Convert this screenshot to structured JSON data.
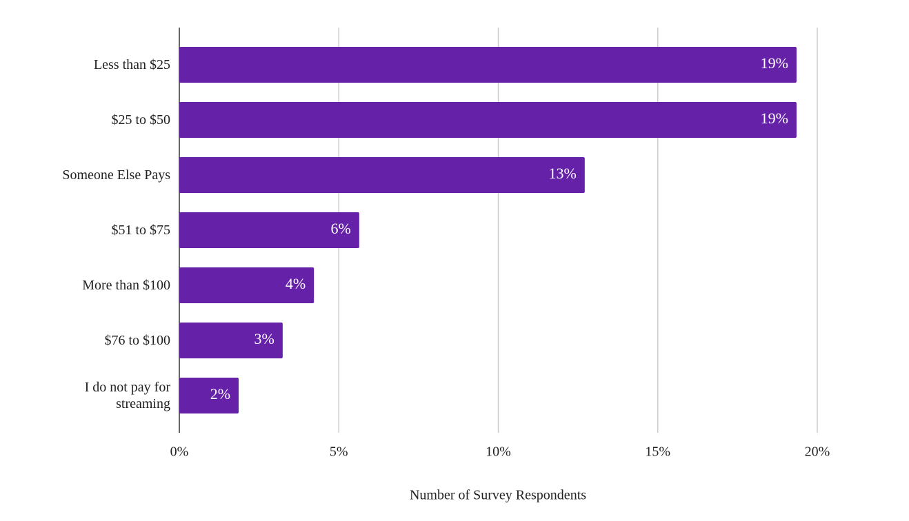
{
  "chart_data": {
    "type": "hbar",
    "categories": [
      "Less than $25",
      "$25 to $50",
      "Someone Else Pays",
      "$51 to $75",
      "More than $100",
      "$76 to $100",
      "I do not pay for streaming"
    ],
    "values": [
      19.35,
      19.35,
      12.71,
      5.64,
      4.22,
      3.24,
      1.86
    ],
    "value_labels": [
      "19%",
      "19%",
      "13%",
      "6%",
      "4%",
      "3%",
      "2%"
    ],
    "color": "#6522a8",
    "xlim": [
      0,
      20
    ],
    "xticks": [
      {
        "value": 0,
        "label": "0%"
      },
      {
        "value": 5,
        "label": "5%"
      },
      {
        "value": 10,
        "label": "10%"
      },
      {
        "value": 15,
        "label": "15%"
      },
      {
        "value": 20,
        "label": "20%"
      }
    ],
    "x_label": "Number of Survey Respondents",
    "grid": true
  }
}
